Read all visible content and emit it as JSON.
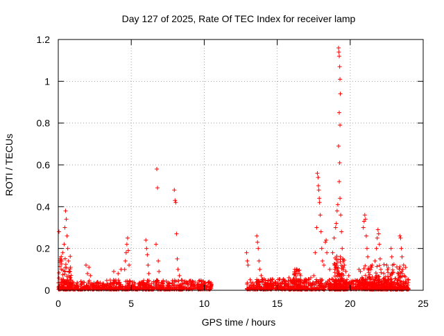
{
  "chart_data": {
    "type": "scatter",
    "title": "Day 127 of 2025, Rate Of TEC Index for receiver lamp",
    "xlabel": "GPS time / hours",
    "ylabel": "ROTI / TECUs",
    "xlim": [
      0,
      25
    ],
    "ylim": [
      0,
      1.2
    ],
    "x_ticks": [
      0,
      5,
      10,
      15,
      20,
      25
    ],
    "x_tick_labels": [
      "0",
      "5",
      "10",
      "15",
      "20",
      "25"
    ],
    "y_ticks": [
      0,
      0.2,
      0.4,
      0.6,
      0.8,
      1.0,
      1.2
    ],
    "y_tick_labels": [
      "0",
      "0.2",
      "0.4",
      "0.6",
      "0.8",
      "1",
      "1.2"
    ],
    "grid": true,
    "marker": "+",
    "marker_color": "#ff0000",
    "series": [
      {
        "points": [
          [
            0.05,
            0.28
          ],
          [
            0.12,
            0.15
          ],
          [
            0.2,
            0.1
          ],
          [
            0.3,
            0.18
          ],
          [
            0.4,
            0.22
          ],
          [
            0.45,
            0.3
          ],
          [
            0.5,
            0.38
          ],
          [
            0.55,
            0.34
          ],
          [
            0.6,
            0.26
          ],
          [
            0.65,
            0.2
          ],
          [
            0.7,
            0.14
          ],
          [
            0.8,
            0.09
          ],
          [
            1.9,
            0.12
          ],
          [
            2.0,
            0.08
          ],
          [
            2.1,
            0.11
          ],
          [
            2.2,
            0.07
          ],
          [
            3.8,
            0.09
          ],
          [
            4.1,
            0.08
          ],
          [
            4.3,
            0.1
          ],
          [
            4.55,
            0.1
          ],
          [
            4.6,
            0.14
          ],
          [
            4.65,
            0.18
          ],
          [
            4.7,
            0.22
          ],
          [
            4.75,
            0.25
          ],
          [
            4.8,
            0.19
          ],
          [
            4.85,
            0.12
          ],
          [
            6.0,
            0.24
          ],
          [
            6.05,
            0.2
          ],
          [
            6.1,
            0.17
          ],
          [
            6.15,
            0.12
          ],
          [
            6.2,
            0.08
          ],
          [
            6.7,
            0.22
          ],
          [
            6.75,
            0.58
          ],
          [
            6.8,
            0.49
          ],
          [
            6.85,
            0.14
          ],
          [
            6.9,
            0.09
          ],
          [
            7.95,
            0.48
          ],
          [
            8.0,
            0.43
          ],
          [
            8.05,
            0.42
          ],
          [
            8.1,
            0.27
          ],
          [
            8.15,
            0.15
          ],
          [
            8.2,
            0.1
          ],
          [
            8.3,
            0.07
          ],
          [
            12.9,
            0.18
          ],
          [
            12.95,
            0.14
          ],
          [
            13.0,
            0.12
          ],
          [
            13.6,
            0.26
          ],
          [
            13.65,
            0.23
          ],
          [
            13.7,
            0.2
          ],
          [
            13.75,
            0.14
          ],
          [
            13.8,
            0.1
          ],
          [
            13.9,
            0.07
          ],
          [
            15.4,
            0.05
          ],
          [
            15.8,
            0.06
          ],
          [
            16.2,
            0.1
          ],
          [
            16.3,
            0.09
          ],
          [
            16.4,
            0.08
          ],
          [
            16.6,
            0.07
          ],
          [
            17.0,
            0.05
          ],
          [
            17.3,
            0.06
          ],
          [
            17.5,
            0.07
          ],
          [
            17.6,
            0.18
          ],
          [
            17.7,
            0.3
          ],
          [
            17.75,
            0.56
          ],
          [
            17.8,
            0.54
          ],
          [
            17.82,
            0.5
          ],
          [
            17.85,
            0.48
          ],
          [
            17.88,
            0.44
          ],
          [
            17.9,
            0.42
          ],
          [
            17.95,
            0.36
          ],
          [
            18.0,
            0.28
          ],
          [
            18.05,
            0.2
          ],
          [
            18.1,
            0.14
          ],
          [
            18.2,
            0.12
          ],
          [
            18.3,
            0.23
          ],
          [
            18.35,
            0.24
          ],
          [
            18.4,
            0.18
          ],
          [
            18.6,
            0.1
          ],
          [
            18.8,
            0.18
          ],
          [
            18.9,
            0.25
          ],
          [
            19.0,
            0.3
          ],
          [
            19.05,
            0.32
          ],
          [
            19.1,
            0.38
          ],
          [
            19.15,
            0.41
          ],
          [
            19.2,
            1.16
          ],
          [
            19.22,
            1.14
          ],
          [
            19.25,
            1.12
          ],
          [
            19.28,
            1.07
          ],
          [
            19.3,
            1.01
          ],
          [
            19.32,
            0.94
          ],
          [
            19.25,
            0.85
          ],
          [
            19.3,
            0.79
          ],
          [
            19.2,
            0.69
          ],
          [
            19.28,
            0.61
          ],
          [
            19.25,
            0.52
          ],
          [
            19.3,
            0.44
          ],
          [
            19.35,
            0.36
          ],
          [
            19.4,
            0.28
          ],
          [
            19.45,
            0.2
          ],
          [
            19.5,
            0.15
          ],
          [
            19.6,
            0.12
          ],
          [
            19.7,
            0.09
          ],
          [
            19.9,
            0.07
          ],
          [
            20.6,
            0.1
          ],
          [
            20.7,
            0.09
          ],
          [
            20.9,
            0.3
          ],
          [
            20.95,
            0.33
          ],
          [
            21.0,
            0.36
          ],
          [
            21.05,
            0.34
          ],
          [
            21.1,
            0.26
          ],
          [
            21.15,
            0.2
          ],
          [
            21.2,
            0.16
          ],
          [
            21.3,
            0.1
          ],
          [
            21.5,
            0.12
          ],
          [
            21.7,
            0.14
          ],
          [
            21.8,
            0.2
          ],
          [
            21.85,
            0.25
          ],
          [
            21.9,
            0.29
          ],
          [
            21.95,
            0.27
          ],
          [
            22.0,
            0.22
          ],
          [
            22.05,
            0.15
          ],
          [
            22.1,
            0.1
          ],
          [
            22.3,
            0.08
          ],
          [
            22.5,
            0.12
          ],
          [
            22.8,
            0.2
          ],
          [
            22.85,
            0.16
          ],
          [
            22.9,
            0.12
          ],
          [
            23.4,
            0.26
          ],
          [
            23.45,
            0.25
          ],
          [
            23.5,
            0.2
          ],
          [
            23.55,
            0.16
          ],
          [
            23.6,
            0.1
          ],
          [
            23.7,
            0.07
          ],
          [
            23.9,
            0.05
          ]
        ],
        "dense_segments": [
          {
            "x_range": [
              0.0,
              10.5
            ],
            "baseline_max": 0.045,
            "count": 700
          },
          {
            "x_range": [
              12.9,
              24.0
            ],
            "baseline_max": 0.05,
            "count": 800
          },
          {
            "x_range": [
              0.0,
              0.9
            ],
            "baseline_max": 0.16,
            "count": 70
          },
          {
            "x_range": [
              16.1,
              16.6
            ],
            "baseline_max": 0.1,
            "count": 40
          },
          {
            "x_range": [
              18.9,
              19.6
            ],
            "baseline_max": 0.16,
            "count": 110
          },
          {
            "x_range": [
              20.8,
              23.8
            ],
            "baseline_max": 0.12,
            "count": 200
          }
        ]
      }
    ]
  }
}
